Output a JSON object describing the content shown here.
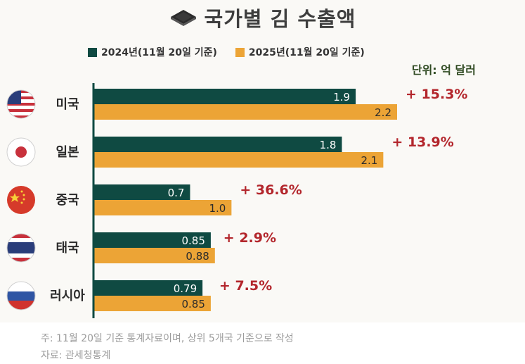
{
  "title": "국가별 김 수출액",
  "legend": [
    {
      "label": "2024년(11월 20일 기준)",
      "color": "#0f4a42"
    },
    {
      "label": "2025년(11월 20일 기준)",
      "color": "#eca436"
    }
  ],
  "unit": "단위: 억 달러",
  "chart_data": {
    "type": "bar",
    "orientation": "horizontal",
    "title": "국가별 김 수출액",
    "categories": [
      "미국",
      "일본",
      "중국",
      "태국",
      "러시아"
    ],
    "series": [
      {
        "name": "2024년(11월 20일 기준)",
        "values": [
          1.9,
          1.8,
          0.7,
          0.85,
          0.79
        ],
        "labels": [
          "1.9",
          "1.8",
          "0.7",
          "0.85",
          "0.79"
        ]
      },
      {
        "name": "2025년(11월 20일 기준)",
        "values": [
          2.2,
          2.1,
          1.0,
          0.88,
          0.85
        ],
        "labels": [
          "2.2",
          "2.1",
          "1.0",
          "0.88",
          "0.85"
        ]
      }
    ],
    "growth": [
      "+ 15.3%",
      "+ 13.9%",
      "+ 36.6%",
      "+ 2.9%",
      "+ 7.5%"
    ],
    "xlim": [
      0,
      2.2
    ],
    "colors": {
      "series_2024": "#0f4a42",
      "series_2025": "#eca436",
      "growth": "#b3262c",
      "axis": "#0f4a42"
    }
  },
  "footer": {
    "note": "주: 11월 20일 기준 통계자료이며, 상위 5개국 기준으로 작성",
    "source": "자료: 관세청통계"
  }
}
